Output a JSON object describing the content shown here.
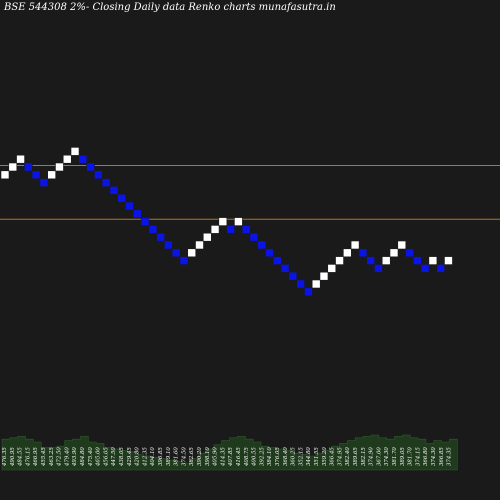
{
  "chart_data": {
    "type": "renko",
    "title": "BSE 544308 2%-  Closing Daily data  Renko  charts munafasutra.in",
    "reference_lines": [
      {
        "value": 5.2,
        "color": "#b8741a"
      },
      {
        "value": -1.7,
        "color": "#b8741a"
      }
    ],
    "box_colors": {
      "up": "#ffffff",
      "down": "#0a14e6"
    },
    "bricks": [
      {
        "level": 4,
        "dir": "up"
      },
      {
        "level": 5,
        "dir": "up"
      },
      {
        "level": 6,
        "dir": "up"
      },
      {
        "level": 5,
        "dir": "down"
      },
      {
        "level": 4,
        "dir": "down"
      },
      {
        "level": 3,
        "dir": "down"
      },
      {
        "level": 4,
        "dir": "up"
      },
      {
        "level": 5,
        "dir": "up"
      },
      {
        "level": 6,
        "dir": "up"
      },
      {
        "level": 7,
        "dir": "up"
      },
      {
        "level": 6,
        "dir": "down"
      },
      {
        "level": 5,
        "dir": "down"
      },
      {
        "level": 4,
        "dir": "down"
      },
      {
        "level": 3,
        "dir": "down"
      },
      {
        "level": 2,
        "dir": "down"
      },
      {
        "level": 1,
        "dir": "down"
      },
      {
        "level": 0,
        "dir": "down"
      },
      {
        "level": -1,
        "dir": "down"
      },
      {
        "level": -2,
        "dir": "down"
      },
      {
        "level": -3,
        "dir": "down"
      },
      {
        "level": -4,
        "dir": "down"
      },
      {
        "level": -5,
        "dir": "down"
      },
      {
        "level": -6,
        "dir": "down"
      },
      {
        "level": -7,
        "dir": "down"
      },
      {
        "level": -6,
        "dir": "up"
      },
      {
        "level": -5,
        "dir": "up"
      },
      {
        "level": -4,
        "dir": "up"
      },
      {
        "level": -3,
        "dir": "up"
      },
      {
        "level": -2,
        "dir": "up"
      },
      {
        "level": -3,
        "dir": "down"
      },
      {
        "level": -2,
        "dir": "up"
      },
      {
        "level": -3,
        "dir": "down"
      },
      {
        "level": -4,
        "dir": "down"
      },
      {
        "level": -5,
        "dir": "down"
      },
      {
        "level": -6,
        "dir": "down"
      },
      {
        "level": -7,
        "dir": "down"
      },
      {
        "level": -8,
        "dir": "down"
      },
      {
        "level": -9,
        "dir": "down"
      },
      {
        "level": -10,
        "dir": "down"
      },
      {
        "level": -11,
        "dir": "down"
      },
      {
        "level": -10,
        "dir": "up"
      },
      {
        "level": -9,
        "dir": "up"
      },
      {
        "level": -8,
        "dir": "up"
      },
      {
        "level": -7,
        "dir": "up"
      },
      {
        "level": -6,
        "dir": "up"
      },
      {
        "level": -5,
        "dir": "up"
      },
      {
        "level": -6,
        "dir": "down"
      },
      {
        "level": -7,
        "dir": "down"
      },
      {
        "level": -8,
        "dir": "down"
      },
      {
        "level": -7,
        "dir": "up"
      },
      {
        "level": -6,
        "dir": "up"
      },
      {
        "level": -5,
        "dir": "up"
      },
      {
        "level": -6,
        "dir": "down"
      },
      {
        "level": -7,
        "dir": "down"
      },
      {
        "level": -8,
        "dir": "down"
      },
      {
        "level": -7,
        "dir": "up"
      },
      {
        "level": -8,
        "dir": "down"
      },
      {
        "level": -7,
        "dir": "up"
      }
    ],
    "volume_labels": [
      "476.35",
      "490.95",
      "484.55",
      "476.15",
      "466.95",
      "455.45",
      "463.25",
      "472.50",
      "479.40",
      "493.90",
      "484.80",
      "475.40",
      "465.00",
      "456.05",
      "447.50",
      "438.05",
      "429.45",
      "420.80",
      "412.35",
      "404.10",
      "396.85",
      "389.10",
      "381.60",
      "374.50",
      "382.65",
      "390.20",
      "398.10",
      "405.90",
      "414.35",
      "407.85",
      "416.45",
      "408.75",
      "400.55",
      "392.25",
      "384.10",
      "376.05",
      "368.40",
      "360.25",
      "352.15",
      "344.80",
      "351.55",
      "359.20",
      "366.45",
      "374.95",
      "382.40",
      "389.65",
      "382.15",
      "374.90",
      "367.00",
      "374.30",
      "381.70",
      "389.05",
      "381.70",
      "374.15",
      "366.80",
      "374.30",
      "366.85",
      "374.35"
    ],
    "volume_values": [
      22,
      23,
      24,
      22,
      20,
      16,
      16,
      17,
      21,
      22,
      24,
      20,
      19,
      16,
      15,
      14,
      13,
      11,
      10,
      9,
      8,
      7,
      6,
      5,
      8,
      12,
      15,
      18,
      21,
      23,
      24,
      22,
      20,
      17,
      16,
      15,
      14,
      12,
      11,
      10,
      12,
      14,
      17,
      19,
      21,
      23,
      24,
      25,
      23,
      22,
      24,
      25,
      23,
      22,
      19,
      21,
      20,
      22
    ]
  }
}
